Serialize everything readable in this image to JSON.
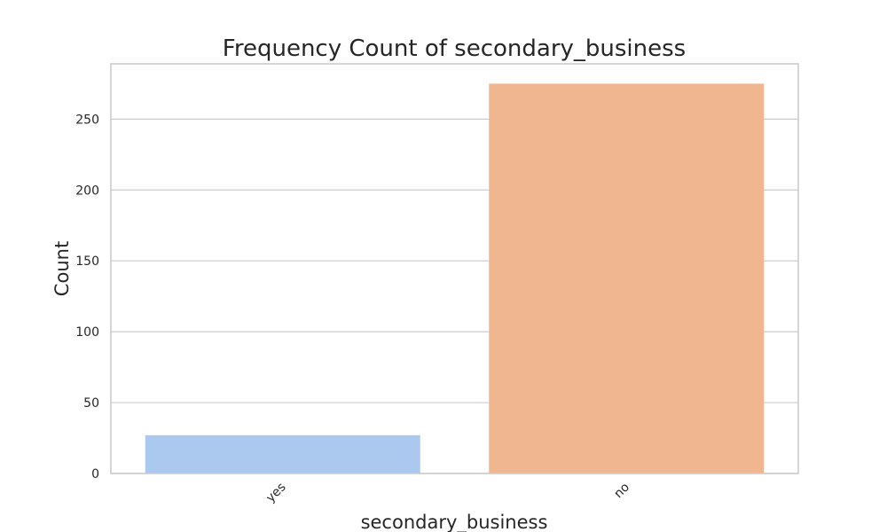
{
  "chart_data": {
    "type": "bar",
    "title": "Frequency Count of secondary_business",
    "xlabel": "secondary_business",
    "ylabel": "Count",
    "categories": [
      "yes",
      "no"
    ],
    "values": [
      27,
      275
    ],
    "colors": [
      "#abc9ee",
      "#f0b68f"
    ],
    "ylim": [
      0,
      289
    ],
    "yticks": [
      0,
      50,
      100,
      150,
      200,
      250
    ],
    "grid": true,
    "xtick_rotation": -45
  }
}
